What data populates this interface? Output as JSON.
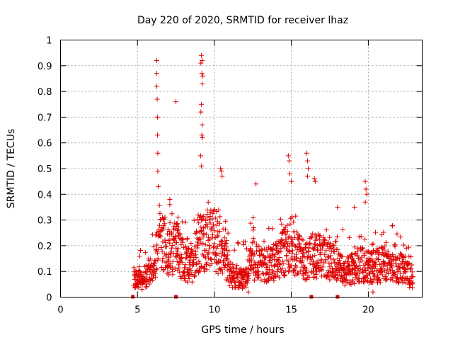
{
  "chart_data": {
    "type": "scatter",
    "title": "Day 220 of 2020, SRMTID for receiver lhaz",
    "xlabel": "GPS time / hours",
    "ylabel": "SRMTID / TECUs",
    "xlim": [
      0,
      23.5
    ],
    "ylim": [
      0,
      1
    ],
    "x_ticks": [
      0,
      5,
      10,
      15,
      20
    ],
    "x_tick_labels": [
      "0",
      "5",
      "10",
      "15",
      "20"
    ],
    "y_ticks": [
      0,
      0.1,
      0.2,
      0.3,
      0.4,
      0.5,
      0.6,
      0.7,
      0.8,
      0.9,
      1
    ],
    "y_tick_labels": [
      "0",
      "0.1",
      "0.2",
      "0.3",
      "0.4",
      "0.5",
      "0.6",
      "0.7",
      "0.8",
      "0.9",
      "1"
    ],
    "grid": true,
    "marker": "+",
    "series_color": "#e00000",
    "data_start_hour": 4.75,
    "data_end_hour": 22.9,
    "baseline_envelope": [
      {
        "x": 4.8,
        "y": 0.07
      },
      {
        "x": 5.5,
        "y": 0.08
      },
      {
        "x": 6.0,
        "y": 0.12
      },
      {
        "x": 6.5,
        "y": 0.22
      },
      {
        "x": 7.0,
        "y": 0.18
      },
      {
        "x": 7.5,
        "y": 0.2
      },
      {
        "x": 8.0,
        "y": 0.14
      },
      {
        "x": 8.5,
        "y": 0.12
      },
      {
        "x": 9.0,
        "y": 0.2
      },
      {
        "x": 9.5,
        "y": 0.22
      },
      {
        "x": 10.0,
        "y": 0.22
      },
      {
        "x": 10.5,
        "y": 0.18
      },
      {
        "x": 11.0,
        "y": 0.09
      },
      {
        "x": 11.5,
        "y": 0.07
      },
      {
        "x": 12.0,
        "y": 0.07
      },
      {
        "x": 12.5,
        "y": 0.15
      },
      {
        "x": 13.0,
        "y": 0.13
      },
      {
        "x": 13.5,
        "y": 0.12
      },
      {
        "x": 14.0,
        "y": 0.14
      },
      {
        "x": 14.5,
        "y": 0.18
      },
      {
        "x": 15.0,
        "y": 0.2
      },
      {
        "x": 15.5,
        "y": 0.16
      },
      {
        "x": 16.0,
        "y": 0.14
      },
      {
        "x": 16.5,
        "y": 0.17
      },
      {
        "x": 17.0,
        "y": 0.15
      },
      {
        "x": 17.5,
        "y": 0.14
      },
      {
        "x": 18.0,
        "y": 0.12
      },
      {
        "x": 18.5,
        "y": 0.1
      },
      {
        "x": 19.0,
        "y": 0.11
      },
      {
        "x": 19.5,
        "y": 0.13
      },
      {
        "x": 20.0,
        "y": 0.12
      },
      {
        "x": 20.5,
        "y": 0.12
      },
      {
        "x": 21.0,
        "y": 0.13
      },
      {
        "x": 21.5,
        "y": 0.12
      },
      {
        "x": 22.0,
        "y": 0.12
      },
      {
        "x": 22.5,
        "y": 0.09
      },
      {
        "x": 22.9,
        "y": 0.08
      }
    ],
    "notable_points": [
      {
        "x": 6.25,
        "y": 0.92
      },
      {
        "x": 6.25,
        "y": 0.87
      },
      {
        "x": 6.25,
        "y": 0.82
      },
      {
        "x": 6.28,
        "y": 0.77
      },
      {
        "x": 6.3,
        "y": 0.7
      },
      {
        "x": 6.3,
        "y": 0.63
      },
      {
        "x": 6.32,
        "y": 0.56
      },
      {
        "x": 6.32,
        "y": 0.49
      },
      {
        "x": 6.35,
        "y": 0.43
      },
      {
        "x": 7.5,
        "y": 0.76
      },
      {
        "x": 9.15,
        "y": 0.94
      },
      {
        "x": 9.2,
        "y": 0.92
      },
      {
        "x": 9.12,
        "y": 0.91
      },
      {
        "x": 9.18,
        "y": 0.87
      },
      {
        "x": 9.25,
        "y": 0.86
      },
      {
        "x": 9.2,
        "y": 0.83
      },
      {
        "x": 9.15,
        "y": 0.75
      },
      {
        "x": 9.12,
        "y": 0.72
      },
      {
        "x": 9.2,
        "y": 0.67
      },
      {
        "x": 9.18,
        "y": 0.63
      },
      {
        "x": 9.22,
        "y": 0.62
      },
      {
        "x": 9.1,
        "y": 0.55
      },
      {
        "x": 9.15,
        "y": 0.51
      },
      {
        "x": 10.4,
        "y": 0.5
      },
      {
        "x": 10.45,
        "y": 0.49
      },
      {
        "x": 10.5,
        "y": 0.47
      },
      {
        "x": 7.1,
        "y": 0.38
      },
      {
        "x": 7.1,
        "y": 0.36
      },
      {
        "x": 12.7,
        "y": 0.44
      },
      {
        "x": 14.8,
        "y": 0.55
      },
      {
        "x": 14.85,
        "y": 0.53
      },
      {
        "x": 14.9,
        "y": 0.48
      },
      {
        "x": 15.0,
        "y": 0.45
      },
      {
        "x": 16.0,
        "y": 0.56
      },
      {
        "x": 16.05,
        "y": 0.53
      },
      {
        "x": 16.1,
        "y": 0.5
      },
      {
        "x": 16.05,
        "y": 0.47
      },
      {
        "x": 16.5,
        "y": 0.46
      },
      {
        "x": 16.55,
        "y": 0.45
      },
      {
        "x": 19.8,
        "y": 0.45
      },
      {
        "x": 19.85,
        "y": 0.42
      },
      {
        "x": 19.9,
        "y": 0.4
      },
      {
        "x": 19.8,
        "y": 0.37
      },
      {
        "x": 18.0,
        "y": 0.35
      },
      {
        "x": 19.1,
        "y": 0.35
      },
      {
        "x": 11.9,
        "y": 0.04
      },
      {
        "x": 12.2,
        "y": 0.02
      },
      {
        "x": 20.3,
        "y": 0.02
      },
      {
        "x": 5.3,
        "y": 0.03
      }
    ],
    "gap_markers_x": [
      4.7,
      7.5,
      16.3,
      18.0
    ]
  }
}
